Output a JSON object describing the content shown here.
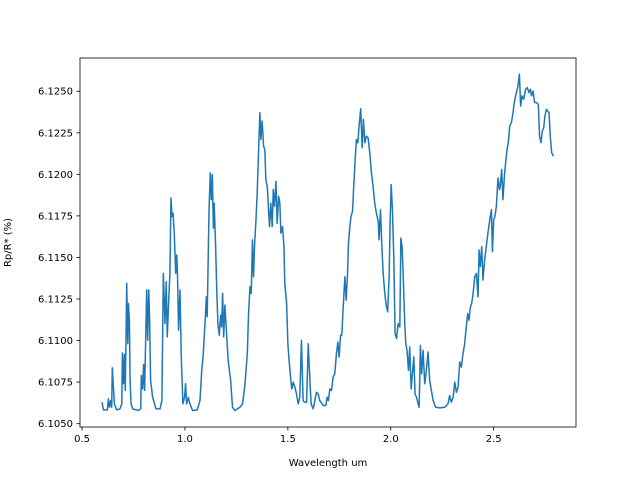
{
  "chart_data": {
    "type": "line",
    "title": "",
    "xlabel": "Wavelength um",
    "ylabel": "Rp/R* (%)",
    "xlim": [
      0.49,
      2.9
    ],
    "ylim": [
      6.1048,
      6.127
    ],
    "xticks": [
      0.5,
      1.0,
      1.5,
      2.0,
      2.5
    ],
    "xtick_labels": [
      "0.5",
      "1.0",
      "1.5",
      "2.0",
      "2.5"
    ],
    "yticks": [
      6.105,
      6.1075,
      6.11,
      6.1125,
      6.115,
      6.1175,
      6.12,
      6.1225,
      6.125
    ],
    "ytick_labels": [
      "6.1050",
      "6.1075",
      "6.1100",
      "6.1125",
      "6.1150",
      "6.1175",
      "6.1200",
      "6.1225",
      "6.1250"
    ],
    "grid": false,
    "line_color": "#1f77b4",
    "series": [
      {
        "x": [
          0.597,
          0.604,
          0.623,
          0.628,
          0.633,
          0.639,
          0.644,
          0.647,
          0.652,
          0.657,
          0.668,
          0.684,
          0.693,
          0.696,
          0.701,
          0.706,
          0.71,
          0.717,
          0.722,
          0.725,
          0.73,
          0.733,
          0.738,
          0.746,
          0.773,
          0.785,
          0.788,
          0.794,
          0.799,
          0.804,
          0.814,
          0.819,
          0.824,
          0.828,
          0.833,
          0.843,
          0.859,
          0.879,
          0.888,
          0.895,
          0.903,
          0.909,
          0.914,
          0.921,
          0.927,
          0.932,
          0.937,
          0.942,
          0.948,
          0.955,
          0.96,
          0.964,
          0.969,
          0.976,
          0.982,
          0.99,
          0.998,
          1.003,
          1.008,
          1.016,
          1.024,
          1.037,
          1.06,
          1.073,
          1.081,
          1.089,
          1.099,
          1.104,
          1.108,
          1.117,
          1.123,
          1.128,
          1.133,
          1.138,
          1.142,
          1.149,
          1.154,
          1.16,
          1.167,
          1.173,
          1.178,
          1.183,
          1.188,
          1.194,
          1.202,
          1.21,
          1.222,
          1.231,
          1.243,
          1.267,
          1.28,
          1.291,
          1.303,
          1.309,
          1.316,
          1.322,
          1.328,
          1.333,
          1.338,
          1.345,
          1.351,
          1.358,
          1.364,
          1.369,
          1.375,
          1.382,
          1.388,
          1.393,
          1.4,
          1.406,
          1.411,
          1.417,
          1.424,
          1.429,
          1.435,
          1.442,
          1.448,
          1.455,
          1.461,
          1.466,
          1.474,
          1.481,
          1.485,
          1.494,
          1.5,
          1.506,
          1.513,
          1.519,
          1.526,
          1.534,
          1.542,
          1.55,
          1.558,
          1.566,
          1.574,
          1.581,
          1.591,
          1.599,
          1.607,
          1.613,
          1.623,
          1.631,
          1.639,
          1.647,
          1.655,
          1.672,
          1.684,
          1.691,
          1.697,
          1.704,
          1.712,
          1.72,
          1.728,
          1.736,
          1.743,
          1.749,
          1.756,
          1.762,
          1.769,
          1.777,
          1.783,
          1.79,
          1.794,
          1.801,
          1.807,
          1.814,
          1.82,
          1.827,
          1.833,
          1.84,
          1.846,
          1.854,
          1.861,
          1.867,
          1.874,
          1.882,
          1.89,
          1.898,
          1.906,
          1.914,
          1.922,
          1.93,
          1.939,
          1.943,
          1.95,
          1.956,
          1.963,
          1.971,
          1.979,
          1.985,
          1.992,
          1.997,
          2.002,
          2.008,
          2.015,
          2.021,
          2.028,
          2.036,
          2.044,
          2.049,
          2.055,
          2.06,
          2.068,
          2.073,
          2.079,
          2.086,
          2.092,
          2.099,
          2.105,
          2.112,
          2.118,
          2.125,
          2.133,
          2.138,
          2.144,
          2.15,
          2.157,
          2.165,
          2.173,
          2.181,
          2.189,
          2.197,
          2.206,
          2.218,
          2.238,
          2.262,
          2.278,
          2.286,
          2.294,
          2.303,
          2.311,
          2.319,
          2.327,
          2.335,
          2.343,
          2.351,
          2.359,
          2.367,
          2.374,
          2.38,
          2.387,
          2.393,
          2.4,
          2.408,
          2.416,
          2.424,
          2.429,
          2.435,
          2.442,
          2.448,
          2.456,
          2.464,
          2.472,
          2.481,
          2.489,
          2.494,
          2.5,
          2.506,
          2.513,
          2.521,
          2.528,
          2.532,
          2.539,
          2.545,
          2.552,
          2.558,
          2.565,
          2.571,
          2.578,
          2.586,
          2.594,
          2.6,
          2.61,
          2.618,
          2.625,
          2.631,
          2.638,
          2.646,
          2.655,
          2.663,
          2.672,
          2.678,
          2.684,
          2.691,
          2.699,
          2.707,
          2.717,
          2.723,
          2.73,
          2.736,
          2.743,
          2.749,
          2.756,
          2.762,
          2.769,
          2.775,
          2.782,
          2.791
        ],
        "y": [
          6.10629,
          6.10583,
          6.10583,
          6.10649,
          6.10599,
          6.10639,
          6.10599,
          6.10836,
          6.1073,
          6.10619,
          6.10583,
          6.10589,
          6.10619,
          6.10925,
          6.1074,
          6.10917,
          6.107,
          6.11344,
          6.10981,
          6.11223,
          6.11122,
          6.1078,
          6.10619,
          6.10589,
          6.10579,
          6.10589,
          6.1079,
          6.10709,
          6.10856,
          6.107,
          6.11304,
          6.11002,
          6.11304,
          6.11143,
          6.1076,
          6.10659,
          6.10589,
          6.10589,
          6.10639,
          6.11404,
          6.11102,
          6.11354,
          6.11022,
          6.11243,
          6.11404,
          6.11858,
          6.11747,
          6.11767,
          6.11646,
          6.11404,
          6.11515,
          6.11384,
          6.11062,
          6.11304,
          6.10901,
          6.10619,
          6.10659,
          6.1074,
          6.10619,
          6.10659,
          6.10619,
          6.10579,
          6.10583,
          6.10639,
          6.1081,
          6.10921,
          6.11143,
          6.11263,
          6.11143,
          6.11787,
          6.12009,
          6.11847,
          6.11998,
          6.11676,
          6.11827,
          6.11565,
          6.11324,
          6.11102,
          6.11032,
          6.11153,
          6.11082,
          6.11283,
          6.11022,
          6.11213,
          6.11042,
          6.10881,
          6.1076,
          6.10599,
          6.10579,
          6.10599,
          6.10619,
          6.1073,
          6.10921,
          6.11163,
          6.11324,
          6.11283,
          6.11606,
          6.11384,
          6.11565,
          6.11727,
          6.11888,
          6.1215,
          6.12371,
          6.1221,
          6.12321,
          6.1217,
          6.1215,
          6.11968,
          6.11928,
          6.11787,
          6.11686,
          6.11827,
          6.11686,
          6.11908,
          6.11807,
          6.11958,
          6.11706,
          6.11868,
          6.11827,
          6.11646,
          6.11686,
          6.11565,
          6.11344,
          6.11223,
          6.10981,
          6.10881,
          6.1078,
          6.10709,
          6.1075,
          6.1072,
          6.10679,
          6.10619,
          6.10659,
          6.11002,
          6.10639,
          6.10629,
          6.10629,
          6.10981,
          6.1076,
          6.10619,
          6.10589,
          6.10639,
          6.10689,
          6.10679,
          6.10639,
          6.10609,
          6.10609,
          6.10659,
          6.10639,
          6.10709,
          6.107,
          6.1078,
          6.108,
          6.10921,
          6.10991,
          6.10901,
          6.11032,
          6.11032,
          6.11203,
          6.11384,
          6.11243,
          6.11404,
          6.11576,
          6.11686,
          6.11747,
          6.11777,
          6.11928,
          6.12089,
          6.1221,
          6.1219,
          6.1229,
          6.12395,
          6.1216,
          6.12331,
          6.1219,
          6.1223,
          6.1222,
          6.12129,
          6.12009,
          6.11928,
          6.11827,
          6.11767,
          6.11717,
          6.11606,
          6.11787,
          6.11586,
          6.11404,
          6.11283,
          6.11203,
          6.11173,
          6.11384,
          6.11727,
          6.11938,
          6.11787,
          6.11485,
          6.11042,
          6.11012,
          6.11102,
          6.11082,
          6.11616,
          6.11565,
          6.11404,
          6.11102,
          6.10981,
          6.10941,
          6.1082,
          6.10961,
          6.10709,
          6.108,
          6.10901,
          6.10679,
          6.10659,
          6.10619,
          6.10599,
          6.10971,
          6.108,
          6.10941,
          6.1074,
          6.1082,
          6.10931,
          6.1076,
          6.107,
          6.10639,
          6.10599,
          6.10595,
          6.10599,
          6.10619,
          6.10669,
          6.10629,
          6.10659,
          6.1075,
          6.10689,
          6.1072,
          6.10871,
          6.1084,
          6.10921,
          6.10981,
          6.11082,
          6.11163,
          6.11122,
          6.11203,
          6.11223,
          6.11283,
          6.11384,
          6.11404,
          6.11263,
          6.11545,
          6.11445,
          6.11565,
          6.11364,
          6.11485,
          6.11565,
          6.11646,
          6.11727,
          6.11787,
          6.11535,
          6.11727,
          6.11747,
          6.11807,
          6.11978,
          6.11908,
          6.11928,
          6.12029,
          6.11847,
          6.11988,
          6.12069,
          6.1215,
          6.1219,
          6.1229,
          6.12311,
          6.12371,
          6.12432,
          6.12492,
          6.12532,
          6.12603,
          6.12411,
          6.12472,
          6.12452,
          6.12512,
          6.12522,
          6.12492,
          6.12512,
          6.12472,
          6.12502,
          6.12432,
          6.12432,
          6.12421,
          6.1223,
          6.1219,
          6.1226,
          6.1228,
          6.12351,
          6.12391,
          6.12381,
          6.12371,
          6.1223,
          6.12129,
          6.12109
        ]
      }
    ]
  }
}
